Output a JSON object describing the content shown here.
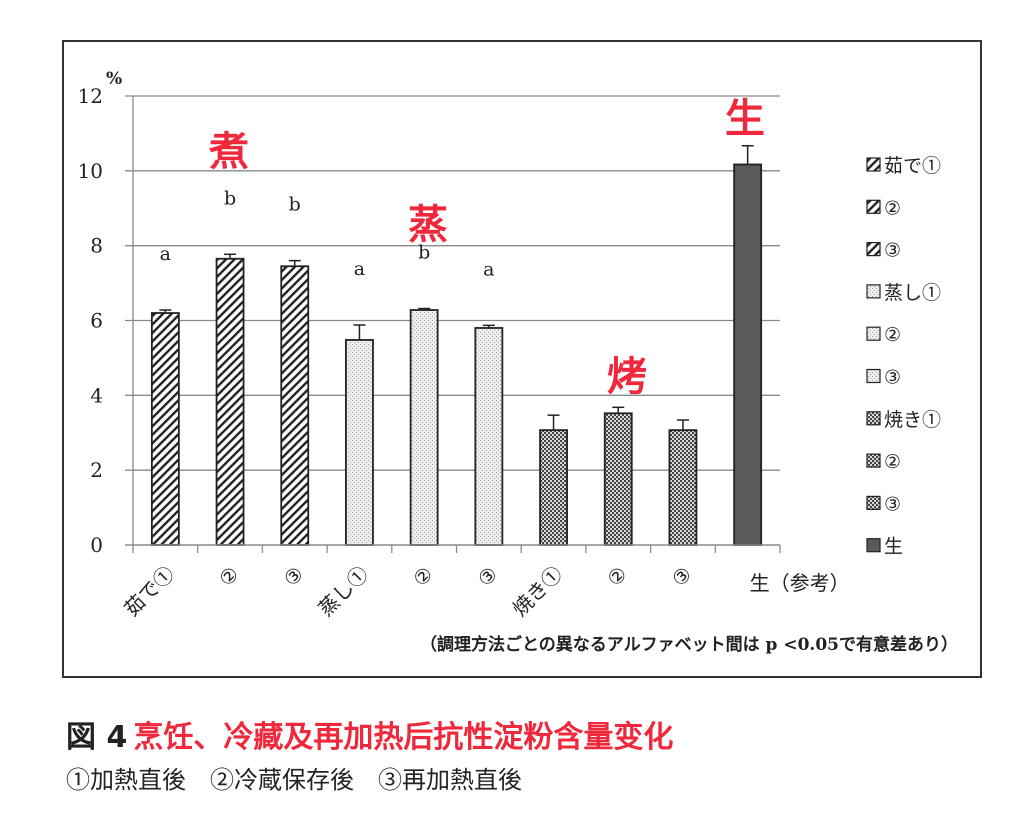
{
  "chart_data": {
    "type": "bar",
    "title": "",
    "xlabel": "",
    "ylabel": "%",
    "ylim": [
      0,
      12
    ],
    "yticks": [
      0,
      2,
      4,
      6,
      8,
      10,
      12
    ],
    "y_unit": "%",
    "grid": true,
    "legend_position": "right",
    "categories": [
      "茹で①",
      "②",
      "③",
      "蒸し①",
      "②",
      "③",
      "焼き①",
      "②",
      "③",
      "生（参考）"
    ],
    "values": [
      6.2,
      7.65,
      7.45,
      5.48,
      6.28,
      5.8,
      3.07,
      3.52,
      3.07,
      10.17
    ],
    "error": [
      0.08,
      0.12,
      0.15,
      0.4,
      0.04,
      0.07,
      0.4,
      0.16,
      0.27,
      0.5
    ],
    "significance_letters": [
      "a",
      "b",
      "b",
      "a",
      "b",
      "a",
      "",
      "",
      "",
      ""
    ],
    "groups": [
      {
        "name": "茹で",
        "annotation": "煮",
        "indices": [
          0,
          1,
          2
        ],
        "pattern": "diagonal-hatch"
      },
      {
        "name": "蒸し",
        "annotation": "蒸",
        "indices": [
          3,
          4,
          5
        ],
        "pattern": "light-dots"
      },
      {
        "name": "焼き",
        "annotation": "烤",
        "indices": [
          6,
          7,
          8
        ],
        "pattern": "dark-checker"
      },
      {
        "name": "生",
        "annotation": "生",
        "indices": [
          9
        ],
        "pattern": "solid-dark"
      }
    ],
    "legend": [
      "茹で①",
      "②",
      "③",
      "蒸し①",
      "②",
      "③",
      "焼き①",
      "②",
      "③",
      "生"
    ],
    "footnote": "（調理方法ごとの異なるアルファベット間は p <0.05で有意差あり）"
  },
  "colors": {
    "annotation_red": "#f0283c",
    "raw_bar": "#5a5a5c",
    "grid": "#8a8a8a",
    "frame": "#333333"
  },
  "caption": {
    "figure_label": "図 4",
    "title": "烹饪、冷藏及再加热后抗性淀粉含量变化",
    "legend_note": "①加熱直後　②冷蔵保存後　③再加熱直後"
  }
}
